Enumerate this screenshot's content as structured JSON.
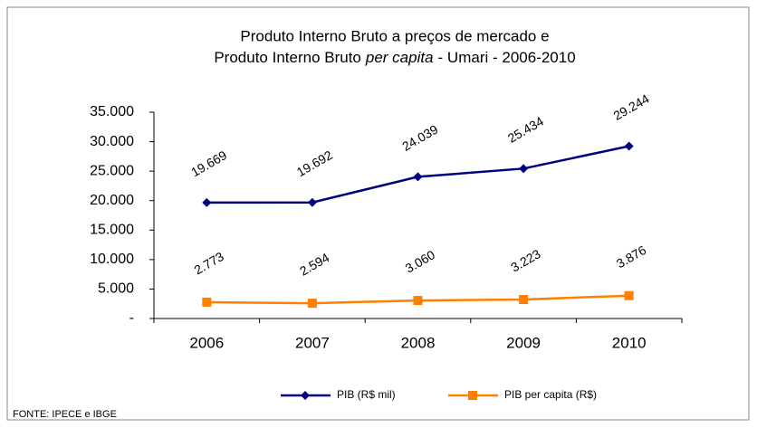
{
  "chart_data": {
    "type": "line",
    "title_line1": "Produto Interno Bruto a preços de mercado e",
    "title_line2": [
      "Produto Interno Bruto",
      "per capita",
      "- Umari - 2006-2010"
    ],
    "categories": [
      "2006",
      "2007",
      "2008",
      "2009",
      "2010"
    ],
    "series": [
      {
        "name": "PIB (R$ mil)",
        "color": "#000080",
        "marker": "diamond",
        "values": [
          19669,
          19692,
          24039,
          25434,
          29244
        ],
        "value_labels": [
          "19.669",
          "19.692",
          "24.039",
          "25.434",
          "29.244"
        ]
      },
      {
        "name": "PIB per capita (R$)",
        "color": "#ff8000",
        "marker": "square",
        "values": [
          2773,
          2594,
          3060,
          3223,
          3876
        ],
        "value_labels": [
          "2.773",
          "2.594",
          "3.060",
          "3.223",
          "3.876"
        ]
      }
    ],
    "ylim": [
      0,
      35000
    ],
    "yticks": [
      {
        "value": 0,
        "label": "-"
      },
      {
        "value": 5000,
        "label": "5.000"
      },
      {
        "value": 10000,
        "label": "10.000"
      },
      {
        "value": 15000,
        "label": "15.000"
      },
      {
        "value": 20000,
        "label": "20.000"
      },
      {
        "value": 25000,
        "label": "25.000"
      },
      {
        "value": 30000,
        "label": "30.000"
      },
      {
        "value": 35000,
        "label": "35.000"
      }
    ],
    "legend": "bottom",
    "source": "FONTE: IPECE e IBGE"
  }
}
